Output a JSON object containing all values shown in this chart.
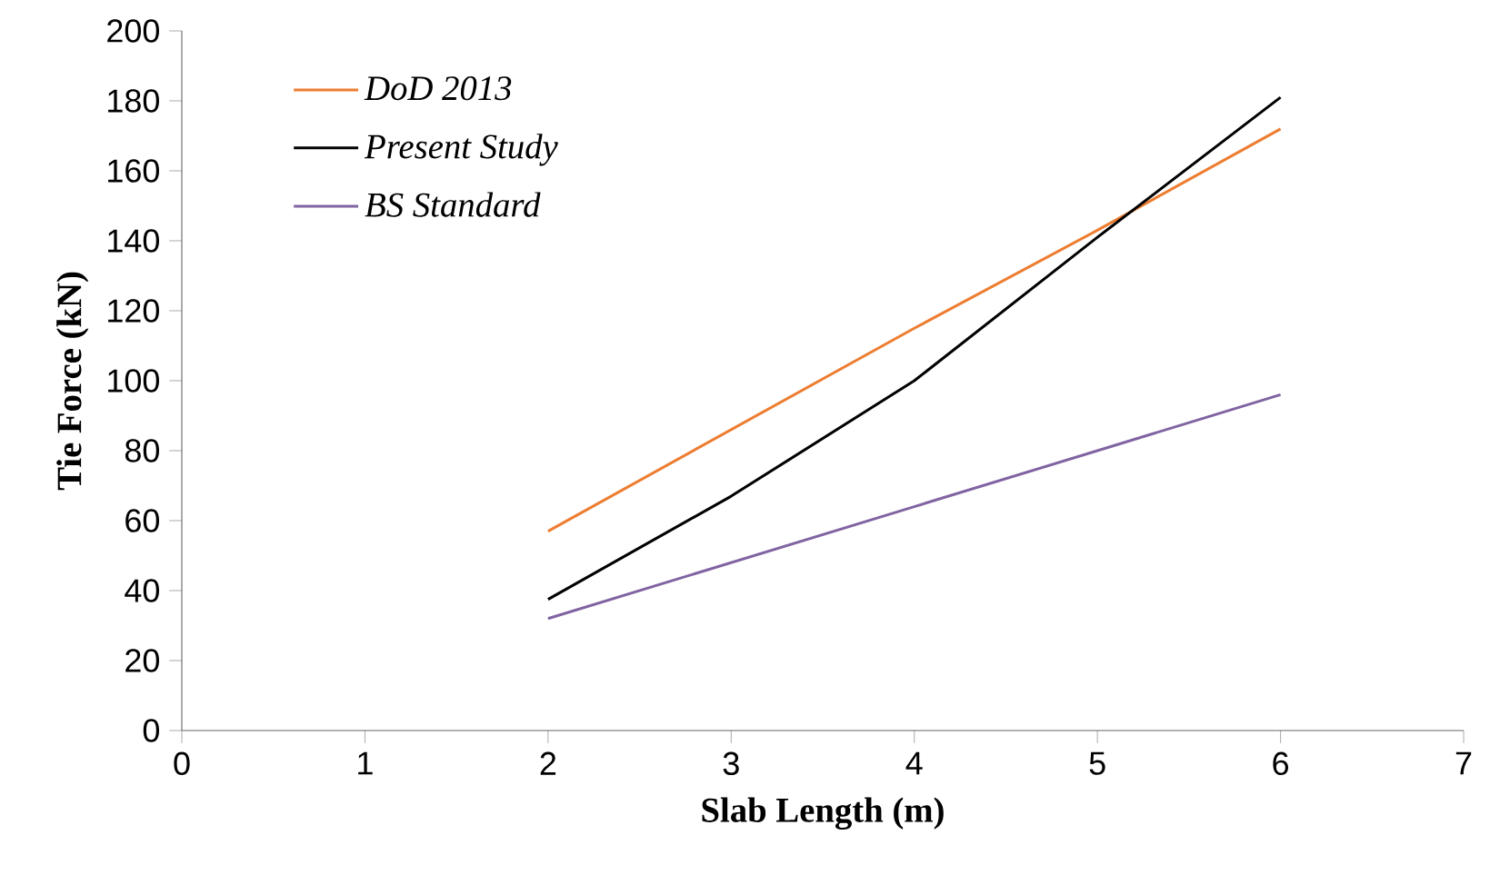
{
  "chart_data": {
    "type": "line",
    "xlabel": "Slab Length (m)",
    "ylabel": "Tie Force (kN)",
    "x": [
      2,
      3,
      4,
      5,
      6
    ],
    "series": [
      {
        "name": "DoD 2013",
        "color": "#ed7d31",
        "values": [
          57,
          86,
          115,
          143,
          172
        ]
      },
      {
        "name": "Present Study",
        "color": "#000000",
        "values": [
          37.5,
          67,
          100,
          141,
          181
        ]
      },
      {
        "name": "BS Standard",
        "color": "#8064a2",
        "values": [
          32,
          48,
          64,
          80,
          96
        ]
      }
    ],
    "xlim": [
      0,
      7
    ],
    "xticks": [
      0,
      1,
      2,
      3,
      4,
      5,
      6,
      7
    ],
    "ylim": [
      0,
      200
    ],
    "yticks": [
      0,
      20,
      40,
      60,
      80,
      100,
      120,
      140,
      160,
      180,
      200
    ],
    "grid": false,
    "legend": "top left",
    "marker": "none",
    "line_style": "solid"
  }
}
